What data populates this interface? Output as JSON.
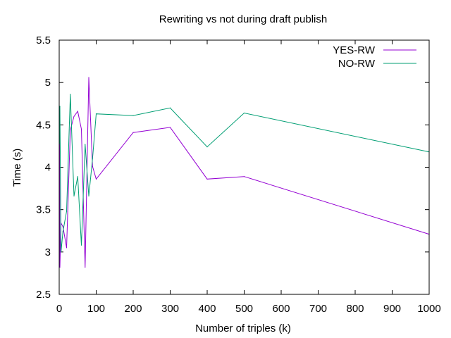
{
  "chart_data": {
    "type": "line",
    "title": "Rewriting vs not during draft publish",
    "xlabel": "Number of triples (k)",
    "ylabel": "Time (s)",
    "xlim": [
      0,
      1000
    ],
    "ylim": [
      2.5,
      5.5
    ],
    "x_ticks": [
      "0",
      "100",
      "200",
      "300",
      "400",
      "500",
      "600",
      "700",
      "800",
      "900",
      "1000"
    ],
    "y_ticks": [
      "2.5",
      "3",
      "3.5",
      "4",
      "4.5",
      "5",
      "5.5"
    ],
    "grid": false,
    "legend_position": "top-right",
    "series": [
      {
        "name": "YES-RW",
        "color": "#9400d3",
        "x": [
          1,
          2,
          5,
          10,
          20,
          30,
          40,
          50,
          60,
          70,
          80,
          90,
          100,
          200,
          300,
          400,
          500,
          1000
        ],
        "y": [
          4.7,
          2.82,
          3.34,
          3.3,
          3.05,
          4.44,
          4.6,
          4.66,
          4.45,
          2.82,
          5.06,
          4.01,
          3.86,
          4.41,
          4.47,
          3.86,
          3.89,
          3.21
        ]
      },
      {
        "name": "NO-RW",
        "color": "#009e73",
        "x": [
          1,
          2,
          5,
          10,
          20,
          30,
          40,
          50,
          60,
          70,
          80,
          90,
          100,
          200,
          300,
          400,
          500,
          1000
        ],
        "y": [
          4.28,
          4.72,
          3.0,
          3.24,
          3.48,
          4.86,
          3.66,
          3.89,
          3.08,
          4.27,
          3.66,
          4.1,
          4.63,
          4.61,
          4.7,
          4.24,
          4.64,
          4.18
        ]
      }
    ]
  }
}
